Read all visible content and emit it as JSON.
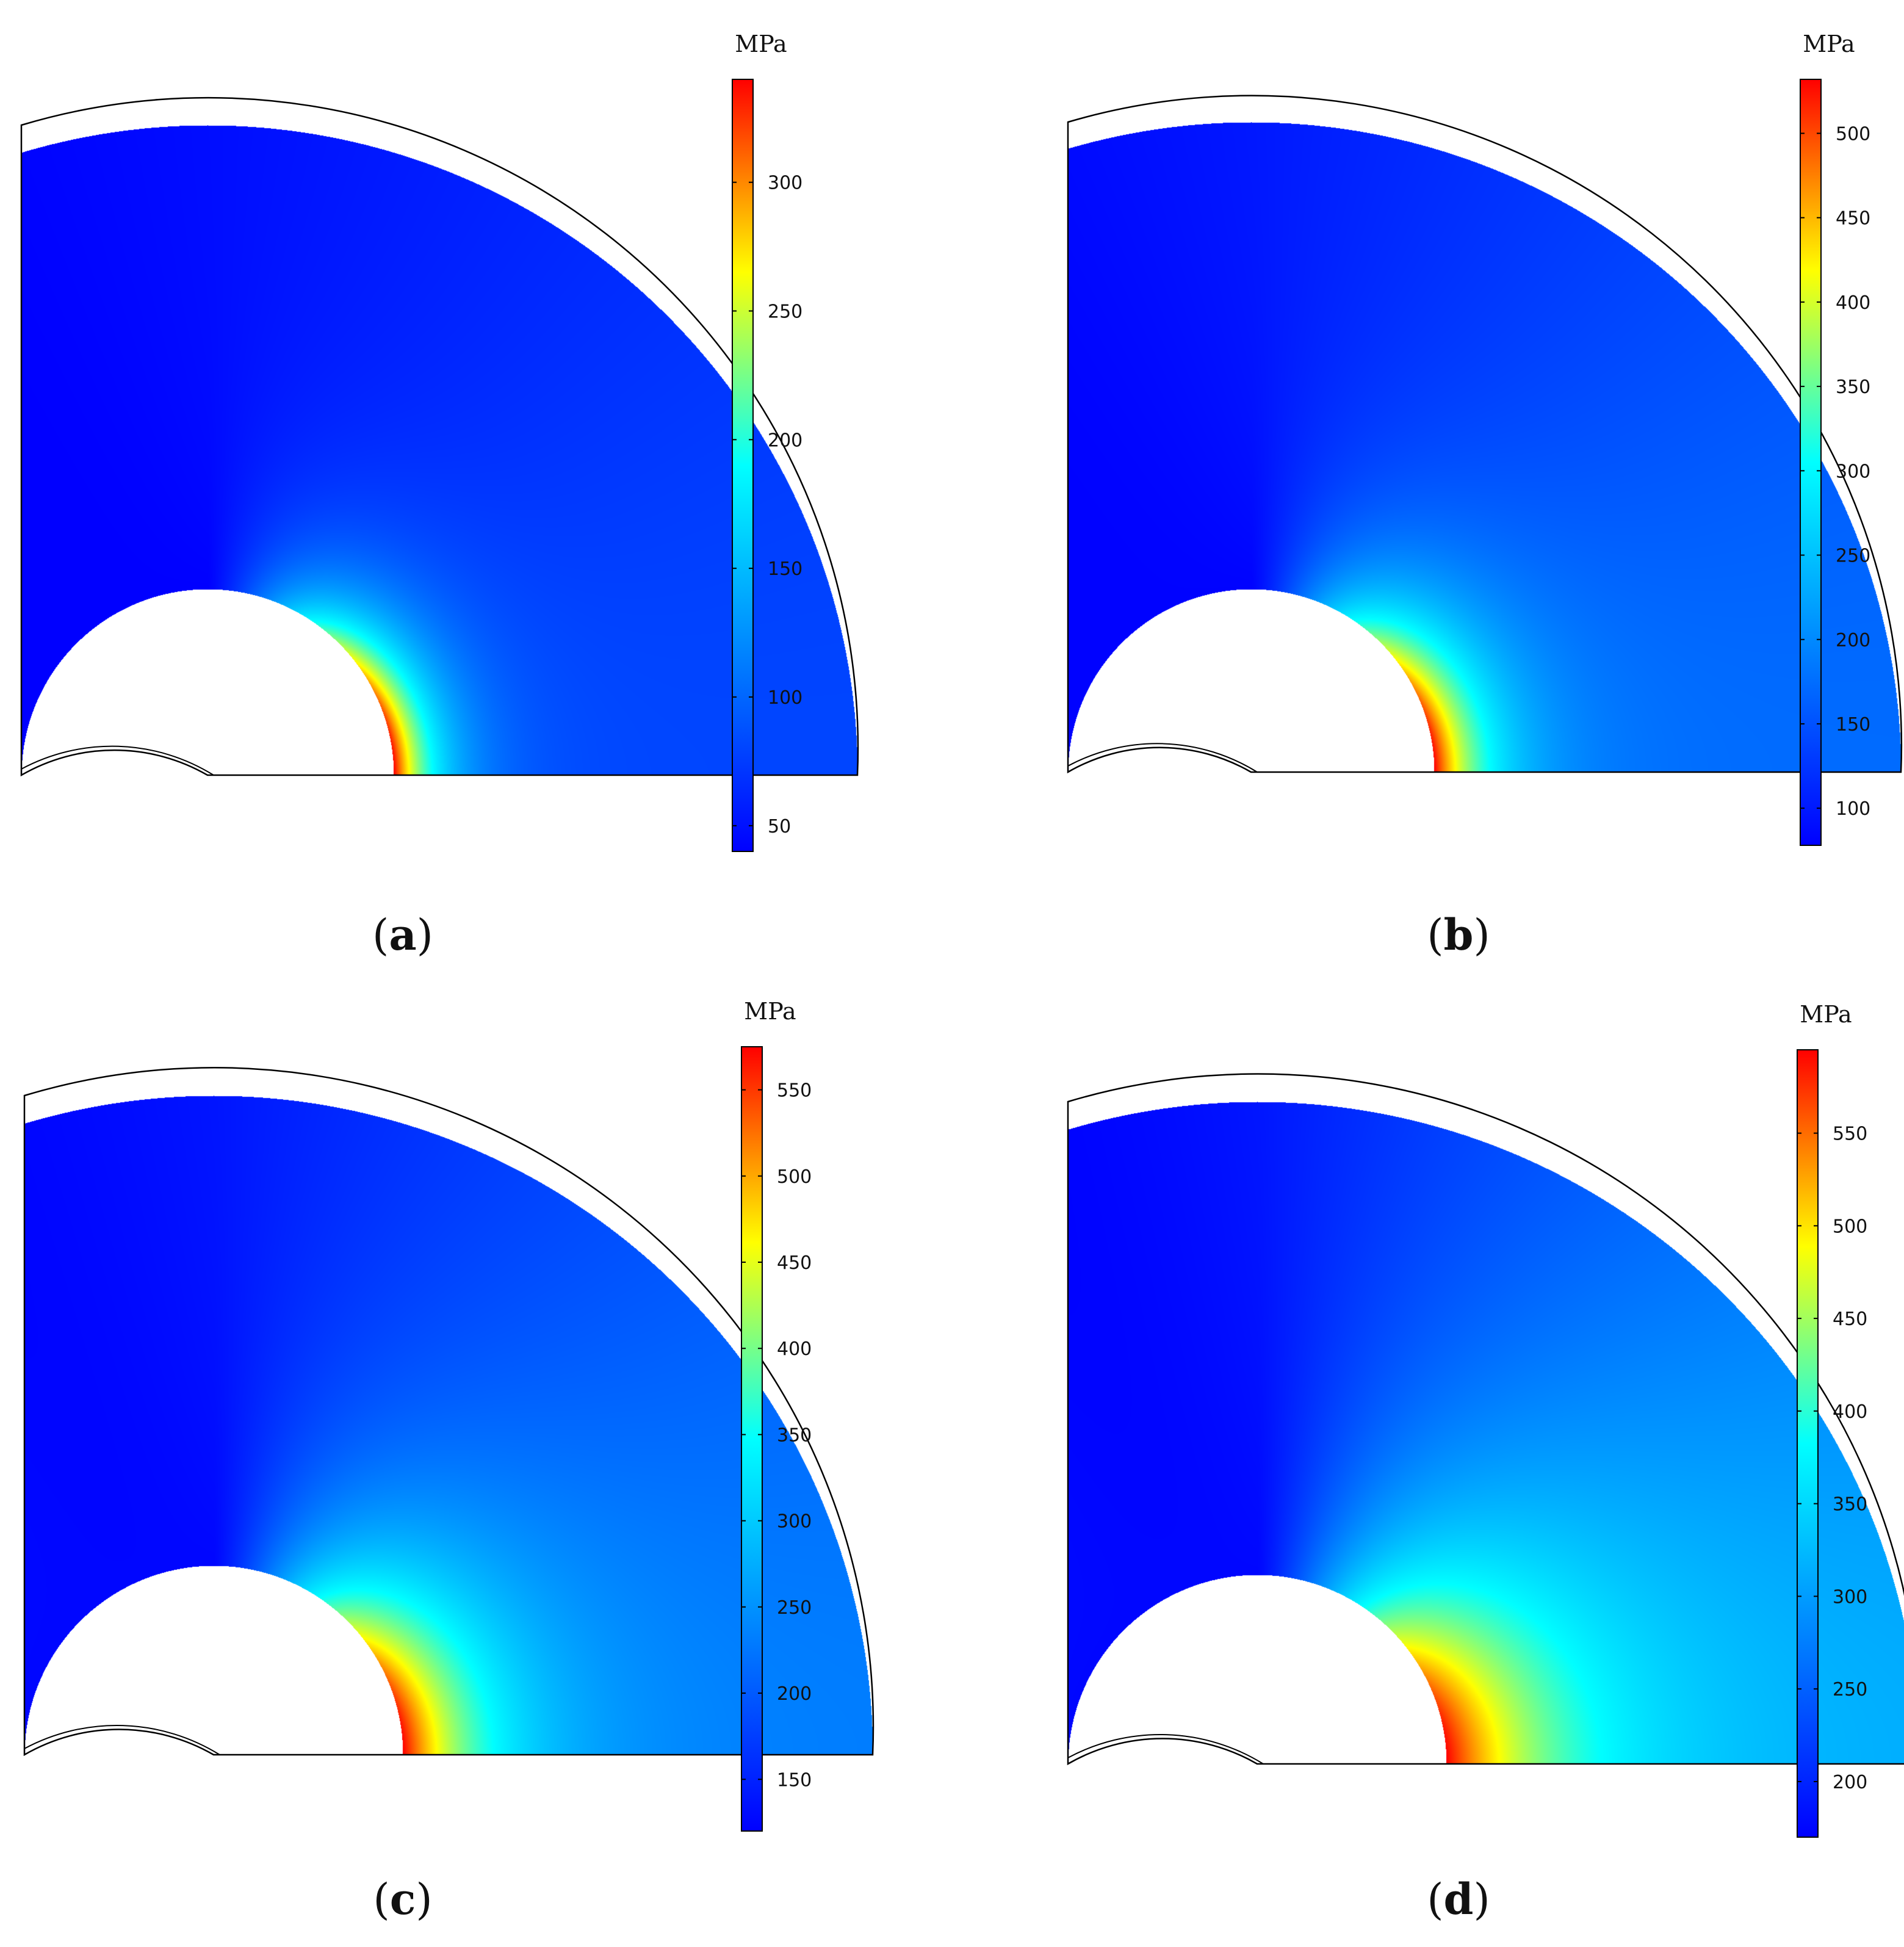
{
  "chart_data": [
    {
      "type": "heatmap",
      "caption": "a",
      "unit": "MPa",
      "ticks": [
        50,
        100,
        150,
        200,
        250,
        300
      ],
      "range": [
        40,
        340
      ],
      "field": {
        "inner_edge_value": 340,
        "outer_edge_value": 40,
        "far_corner_value": 70,
        "decay": 2.6
      },
      "colormap": [
        "#0000ff",
        "#0080ff",
        "#00ffff",
        "#ffff00",
        "#ff0000"
      ]
    },
    {
      "type": "heatmap",
      "caption": "b",
      "unit": "MPa",
      "ticks": [
        100,
        150,
        200,
        250,
        300,
        350,
        400,
        450,
        500
      ],
      "range": [
        78,
        532
      ],
      "field": {
        "inner_edge_value": 532,
        "outer_edge_value": 80,
        "far_corner_value": 150,
        "decay": 2.1
      },
      "colormap": [
        "#0000ff",
        "#0080ff",
        "#00ffff",
        "#ffff00",
        "#ff0000"
      ]
    },
    {
      "type": "heatmap",
      "caption": "c",
      "unit": "MPa",
      "ticks": [
        150,
        200,
        250,
        300,
        350,
        400,
        450,
        500,
        550
      ],
      "range": [
        120,
        575
      ],
      "field": {
        "inner_edge_value": 575,
        "outer_edge_value": 125,
        "far_corner_value": 200,
        "decay": 1.4
      },
      "colormap": [
        "#0000ff",
        "#0080ff",
        "#00ffff",
        "#ffff00",
        "#ff0000"
      ]
    },
    {
      "type": "heatmap",
      "caption": "d",
      "unit": "MPa",
      "ticks": [
        200,
        250,
        300,
        350,
        400,
        450,
        500,
        550
      ],
      "range": [
        170,
        595
      ],
      "field": {
        "inner_edge_value": 595,
        "outer_edge_value": 175,
        "far_corner_value": 270,
        "decay": 1.05
      },
      "colormap": [
        "#0000ff",
        "#0080ff",
        "#00ffff",
        "#ffff00",
        "#ff0000"
      ]
    }
  ]
}
